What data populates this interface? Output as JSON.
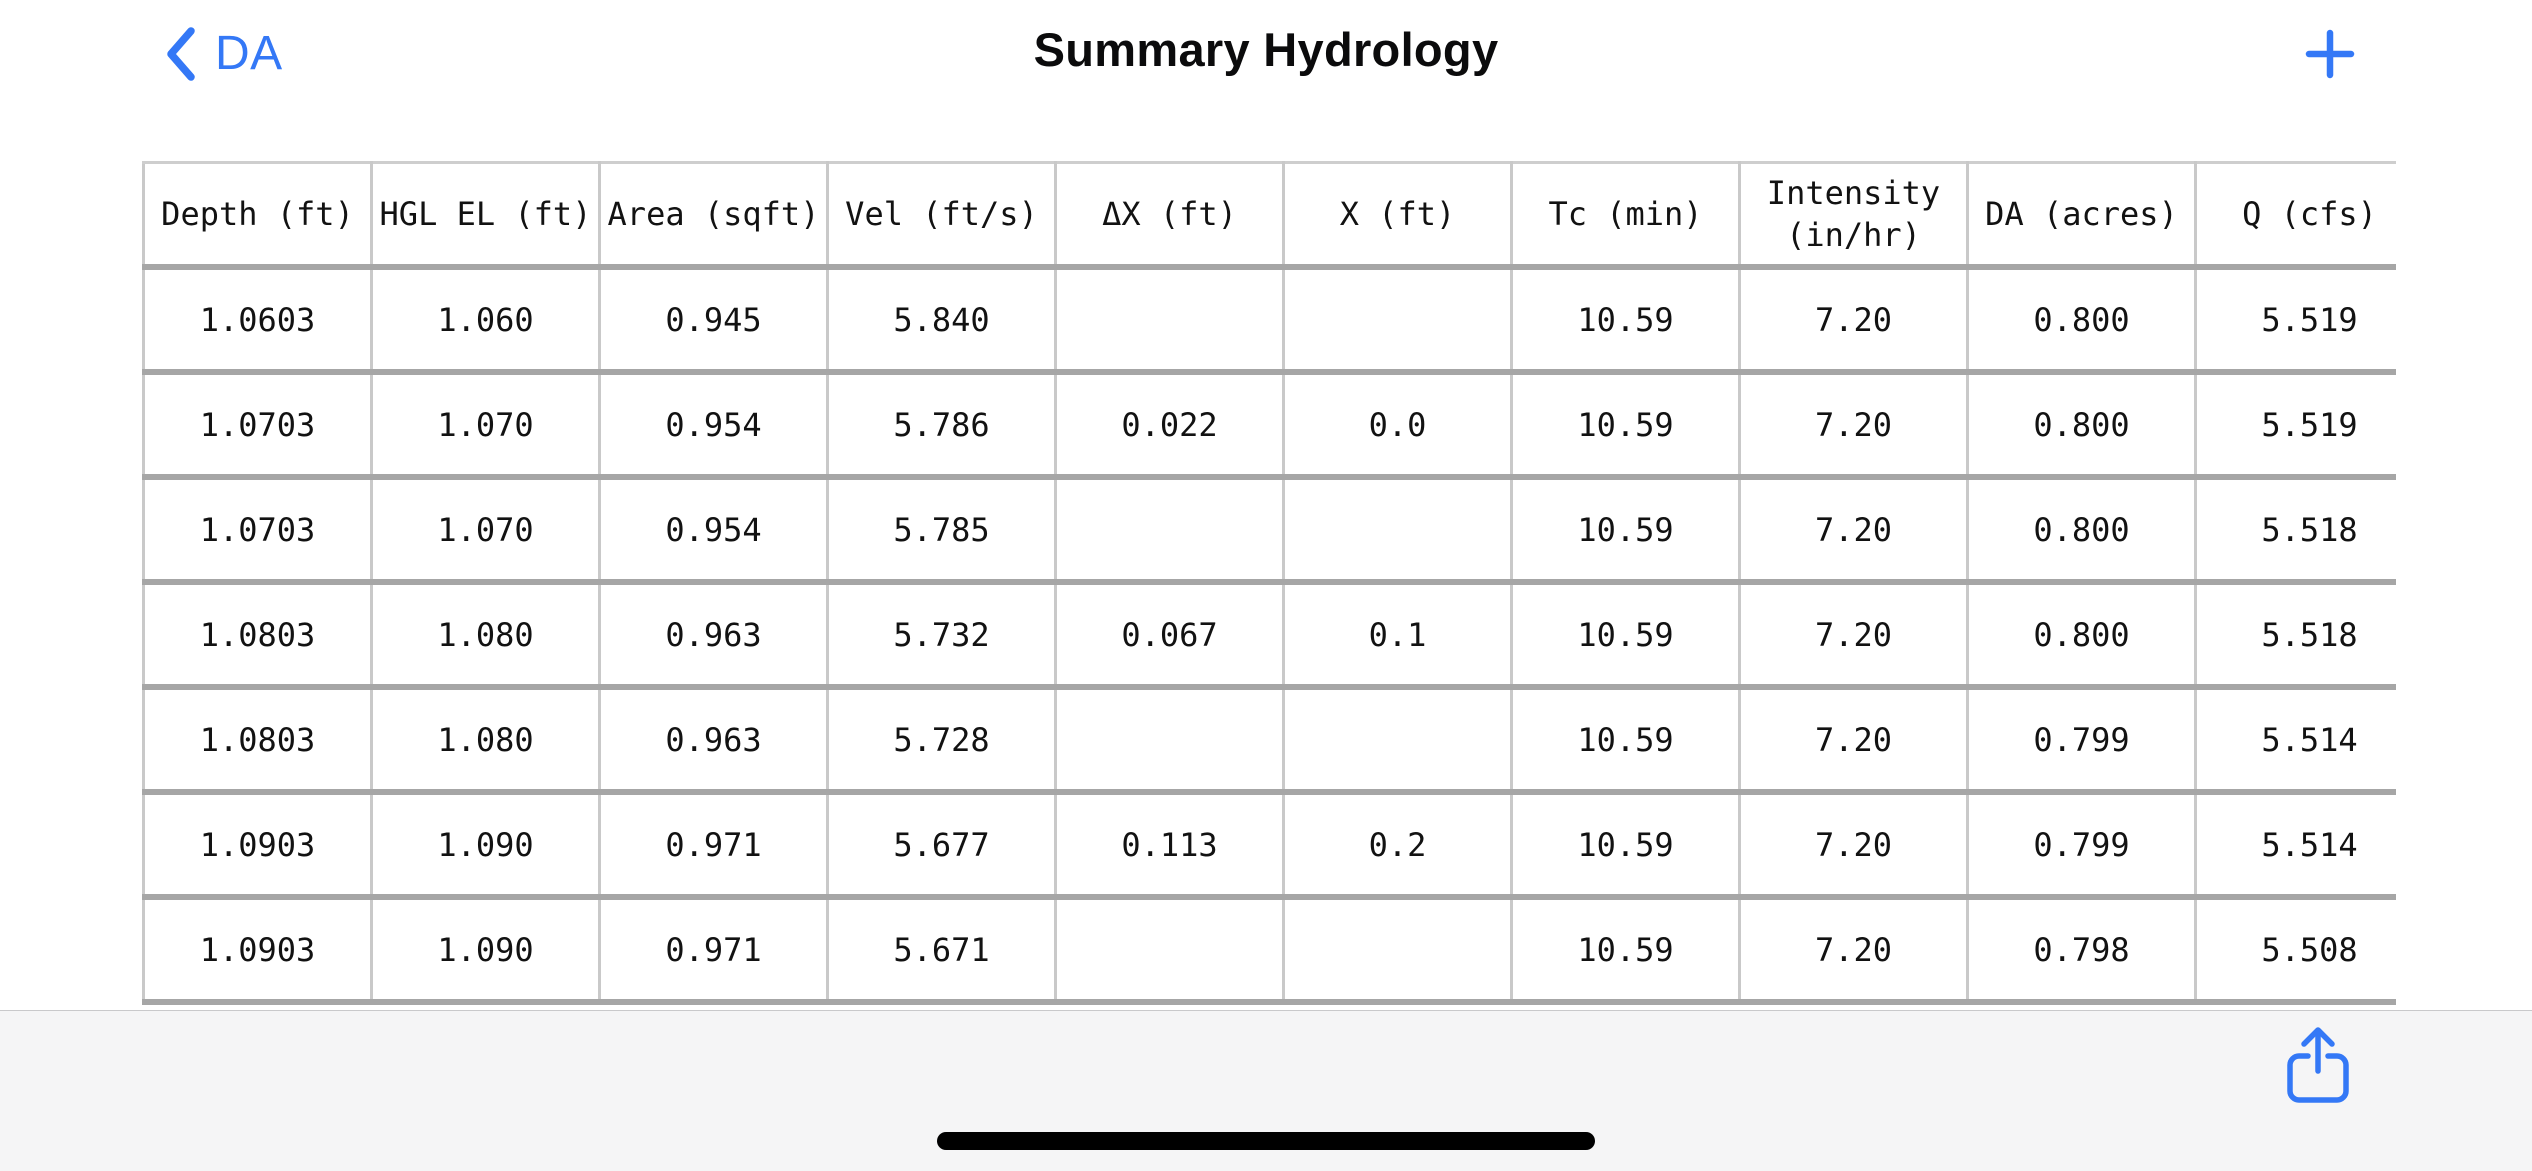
{
  "nav": {
    "back_label": "DA",
    "title": "Summary Hydrology",
    "add_button": "plus-icon"
  },
  "table": {
    "columns": [
      "Depth (ft)",
      "HGL EL (ft)",
      "Area (sqft)",
      "Vel (ft/s)",
      "ΔX (ft)",
      "X (ft)",
      "Tc (min)",
      "Intensity\n(in/hr)",
      "DA (acres)",
      "Q (cfs)"
    ],
    "rows": [
      [
        "1.0603",
        "1.060",
        "0.945",
        "5.840",
        "",
        "",
        "10.59",
        "7.20",
        "0.800",
        "5.519"
      ],
      [
        "1.0703",
        "1.070",
        "0.954",
        "5.786",
        "0.022",
        "0.0",
        "10.59",
        "7.20",
        "0.800",
        "5.519"
      ],
      [
        "1.0703",
        "1.070",
        "0.954",
        "5.785",
        "",
        "",
        "10.59",
        "7.20",
        "0.800",
        "5.518"
      ],
      [
        "1.0803",
        "1.080",
        "0.963",
        "5.732",
        "0.067",
        "0.1",
        "10.59",
        "7.20",
        "0.800",
        "5.518"
      ],
      [
        "1.0803",
        "1.080",
        "0.963",
        "5.728",
        "",
        "",
        "10.59",
        "7.20",
        "0.799",
        "5.514"
      ],
      [
        "1.0903",
        "1.090",
        "0.971",
        "5.677",
        "0.113",
        "0.2",
        "10.59",
        "7.20",
        "0.799",
        "5.514"
      ],
      [
        "1.0903",
        "1.090",
        "0.971",
        "5.671",
        "",
        "",
        "10.59",
        "7.20",
        "0.798",
        "5.508"
      ]
    ]
  },
  "toolbar": {
    "share_icon": "share-icon"
  },
  "colors": {
    "accent": "#3478F6",
    "row_separator": "#a6a6a6",
    "column_separator": "#c9c9c9",
    "toolbar_background": "#f5f5f6",
    "home_indicator": "#000000"
  }
}
